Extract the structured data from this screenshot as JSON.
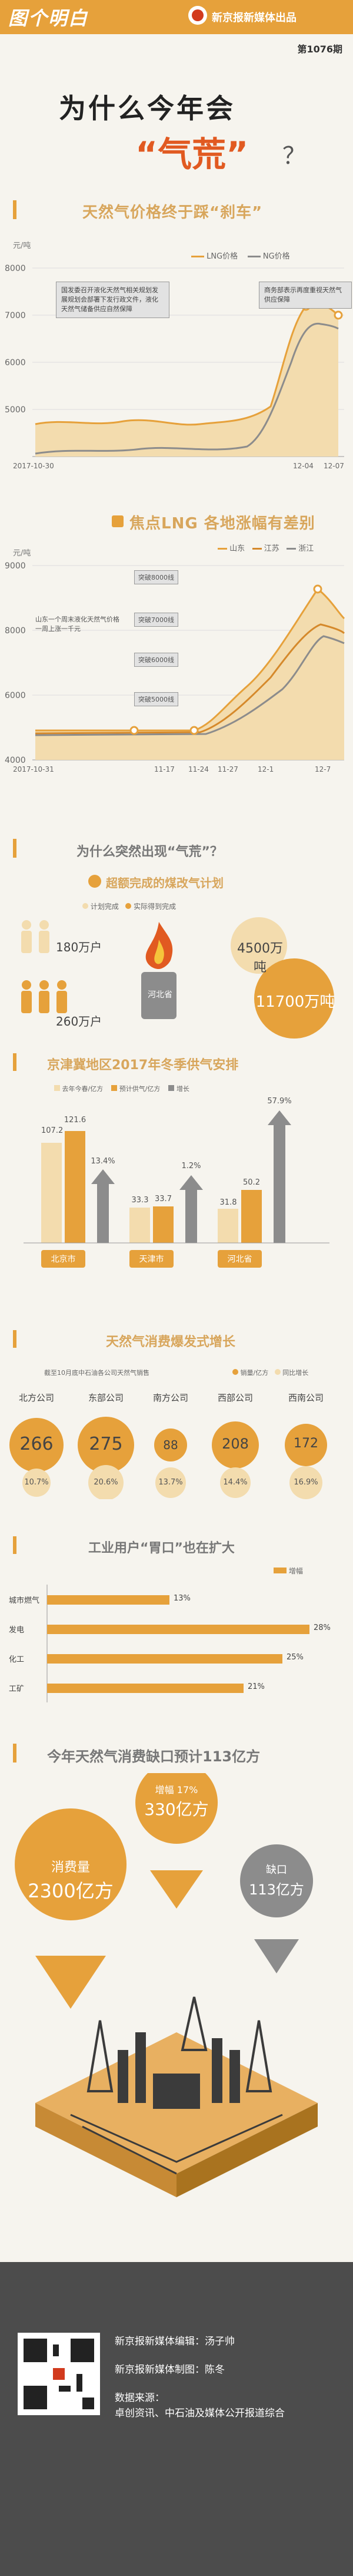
{
  "header": {
    "logo_text": "图个明白",
    "brand": "新京报新媒体出品",
    "issue": "第1076期",
    "title_line1": "为什么今年会",
    "title_line2": "“气荒”",
    "title_q": "？"
  },
  "section1": {
    "title": "天然气价格终于踩“刹车”",
    "ylabel": "元/吨",
    "legend": [
      "LNG价格",
      "NG价格"
    ],
    "annotation_left": "国发委召开液化天然气相关规划发展规划会部署下发行政文件，液化天然气储备供应自然保障",
    "annotation_right": "商务部表示再度重视天然气供应保障"
  },
  "section2": {
    "title": "焦点LNG 各地涨幅有差别",
    "ylabel": "元/吨",
    "legend": [
      "山东",
      "江苏",
      "浙江"
    ],
    "annotation": "山东一个周末液化天然气价格一周上涨一千元",
    "callouts": [
      "突破8000线",
      "突破7000线",
      "突破6000线",
      "突破5000线"
    ]
  },
  "section3": {
    "title": "为什么突然出现“气荒”？",
    "subtitle": "超额完成的煤改气计划",
    "legend": [
      "计划完成",
      "实际得到完成"
    ],
    "plan_people": "180万户",
    "actual_people": "260万户",
    "plan_tons": "4500万吨",
    "actual_tons": "11700万吨",
    "province": "河北省"
  },
  "section4": {
    "title": "京津冀地区2017年冬季供气安排",
    "legend": [
      "去年今春/亿方",
      "预计供气/亿方",
      "增长"
    ],
    "groups": [
      {
        "name": "北京市",
        "last": "107.2",
        "plan": "121.6",
        "growth": "13.4%"
      },
      {
        "name": "天津市",
        "last": "33.3",
        "plan": "33.7",
        "growth": "1.2%"
      },
      {
        "name": "河北省",
        "last": "31.8",
        "plan": "50.2",
        "growth": "57.9%"
      }
    ]
  },
  "section5": {
    "title": "天然气消费爆发式增长",
    "note": "截至10月底中石油各公司天然气销售",
    "legend": [
      "销量/亿方",
      "同比增长"
    ],
    "companies": [
      {
        "name": "北方公司",
        "value": "266",
        "growth": "10.7%"
      },
      {
        "name": "东部公司",
        "value": "275",
        "growth": "20.6%"
      },
      {
        "name": "南方公司",
        "value": "88",
        "growth": "13.7%"
      },
      {
        "name": "西部公司",
        "value": "208",
        "growth": "14.4%"
      },
      {
        "name": "西南公司",
        "value": "172",
        "growth": "16.9%"
      }
    ]
  },
  "section6": {
    "title": "工业用户“胃口”也在扩大",
    "legend": "增幅",
    "rows": [
      {
        "name": "城市燃气",
        "value": "13%"
      },
      {
        "name": "发电",
        "value": "28%"
      },
      {
        "name": "化工",
        "value": "25%"
      },
      {
        "name": "工矿",
        "value": "21%"
      }
    ]
  },
  "section7": {
    "title": "今年天然气消费缺口预计113亿方",
    "consumption_label": "消费量",
    "consumption": "2300亿方",
    "increase_label": "增幅 17%",
    "increase": "330亿方",
    "gap_label": "缺口",
    "gap": "113亿方"
  },
  "footer": {
    "editor": "新京报新媒体编辑：汤子帅",
    "designer": "新京报新媒体制图：陈冬",
    "source_label": "数据来源：",
    "source": "卓创资讯、中石油及媒体公开报道综合"
  },
  "colors": {
    "orange": "#e6a13b",
    "dark_orange": "#d5892b",
    "gray": "#8c8c8c",
    "pale": "#f3dcae"
  },
  "chart_data": [
    {
      "type": "line",
      "title": "天然气价格终于踩“刹车”",
      "ylabel": "元/吨",
      "ylim": [
        4000,
        8000
      ],
      "x": [
        "2017-10-30",
        "12-04",
        "12-07"
      ],
      "series": [
        {
          "name": "LNG价格",
          "values": [
            4700,
            7650,
            7200
          ]
        },
        {
          "name": "NG价格",
          "values": [
            4100,
            7200,
            7050
          ]
        }
      ]
    },
    {
      "type": "line",
      "title": "焦点LNG 各地涨幅有差别",
      "ylabel": "元/吨",
      "ylim": [
        4000,
        9000
      ],
      "x": [
        "2017-10-31",
        "11-17",
        "11-24",
        "11-27",
        "12-1",
        "12-7"
      ],
      "series": [
        {
          "name": "山东",
          "values": [
            4700,
            5100,
            6000,
            7000,
            9000,
            8000
          ]
        },
        {
          "name": "江苏",
          "values": [
            4700,
            5000,
            5500,
            6500,
            8200,
            7700
          ]
        },
        {
          "name": "浙江",
          "values": [
            4800,
            5000,
            5200,
            6000,
            8000,
            7500
          ]
        }
      ]
    },
    {
      "type": "bar",
      "title": "京津冀地区2017年冬季供气安排",
      "categories": [
        "北京市",
        "天津市",
        "河北省"
      ],
      "series": [
        {
          "name": "去年今春/亿方",
          "values": [
            107.2,
            33.3,
            31.8
          ]
        },
        {
          "name": "预计供气/亿方",
          "values": [
            121.6,
            33.7,
            50.2
          ]
        },
        {
          "name": "增长",
          "values": [
            13.4,
            1.2,
            57.9
          ]
        }
      ]
    },
    {
      "type": "bar",
      "title": "天然气消费爆发式增长",
      "categories": [
        "北方公司",
        "东部公司",
        "南方公司",
        "西部公司",
        "西南公司"
      ],
      "series": [
        {
          "name": "销量/亿方",
          "values": [
            266,
            275,
            88,
            208,
            172
          ]
        },
        {
          "name": "同比增长",
          "values": [
            10.7,
            20.6,
            13.7,
            14.4,
            16.9
          ]
        }
      ]
    },
    {
      "type": "bar",
      "title": "工业用户“胃口”也在扩大",
      "categories": [
        "城市燃气",
        "发电",
        "化工",
        "工矿"
      ],
      "series": [
        {
          "name": "增幅",
          "values": [
            13,
            28,
            25,
            21
          ]
        }
      ],
      "xlim": [
        0,
        30
      ]
    }
  ]
}
